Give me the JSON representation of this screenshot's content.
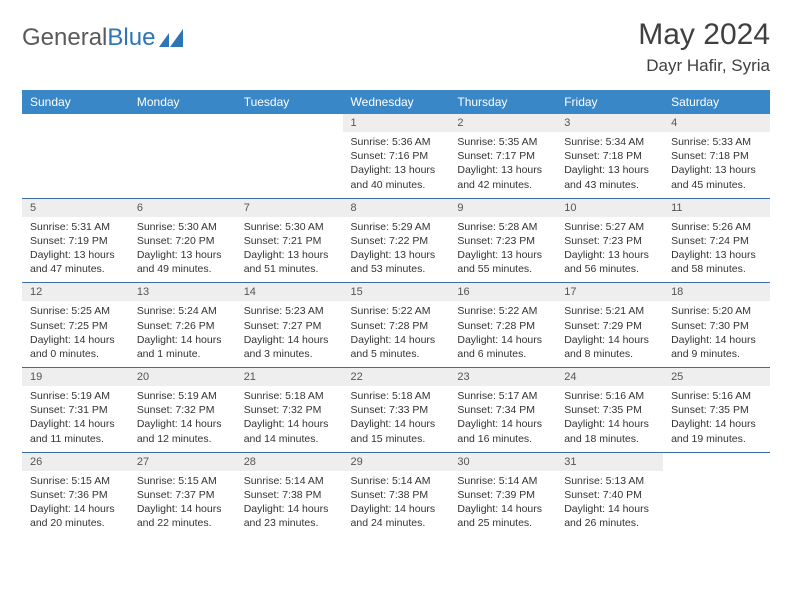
{
  "logo_text_1": "General",
  "logo_text_2": "Blue",
  "month_title": "May 2024",
  "location": "Dayr Hafir, Syria",
  "day_headers": [
    "Sunday",
    "Monday",
    "Tuesday",
    "Wednesday",
    "Thursday",
    "Friday",
    "Saturday"
  ],
  "colors": {
    "header_bg": "#3a87c8",
    "header_fg": "#ffffff",
    "daynum_bg": "#eeeeee",
    "row_border": "#3a6ea5",
    "logo_blue": "#2e75b6",
    "text": "#333333"
  },
  "weeks": [
    [
      null,
      null,
      null,
      {
        "n": "1",
        "sunrise": "Sunrise: 5:36 AM",
        "sunset": "Sunset: 7:16 PM",
        "day1": "Daylight: 13 hours",
        "day2": "and 40 minutes."
      },
      {
        "n": "2",
        "sunrise": "Sunrise: 5:35 AM",
        "sunset": "Sunset: 7:17 PM",
        "day1": "Daylight: 13 hours",
        "day2": "and 42 minutes."
      },
      {
        "n": "3",
        "sunrise": "Sunrise: 5:34 AM",
        "sunset": "Sunset: 7:18 PM",
        "day1": "Daylight: 13 hours",
        "day2": "and 43 minutes."
      },
      {
        "n": "4",
        "sunrise": "Sunrise: 5:33 AM",
        "sunset": "Sunset: 7:18 PM",
        "day1": "Daylight: 13 hours",
        "day2": "and 45 minutes."
      }
    ],
    [
      {
        "n": "5",
        "sunrise": "Sunrise: 5:31 AM",
        "sunset": "Sunset: 7:19 PM",
        "day1": "Daylight: 13 hours",
        "day2": "and 47 minutes."
      },
      {
        "n": "6",
        "sunrise": "Sunrise: 5:30 AM",
        "sunset": "Sunset: 7:20 PM",
        "day1": "Daylight: 13 hours",
        "day2": "and 49 minutes."
      },
      {
        "n": "7",
        "sunrise": "Sunrise: 5:30 AM",
        "sunset": "Sunset: 7:21 PM",
        "day1": "Daylight: 13 hours",
        "day2": "and 51 minutes."
      },
      {
        "n": "8",
        "sunrise": "Sunrise: 5:29 AM",
        "sunset": "Sunset: 7:22 PM",
        "day1": "Daylight: 13 hours",
        "day2": "and 53 minutes."
      },
      {
        "n": "9",
        "sunrise": "Sunrise: 5:28 AM",
        "sunset": "Sunset: 7:23 PM",
        "day1": "Daylight: 13 hours",
        "day2": "and 55 minutes."
      },
      {
        "n": "10",
        "sunrise": "Sunrise: 5:27 AM",
        "sunset": "Sunset: 7:23 PM",
        "day1": "Daylight: 13 hours",
        "day2": "and 56 minutes."
      },
      {
        "n": "11",
        "sunrise": "Sunrise: 5:26 AM",
        "sunset": "Sunset: 7:24 PM",
        "day1": "Daylight: 13 hours",
        "day2": "and 58 minutes."
      }
    ],
    [
      {
        "n": "12",
        "sunrise": "Sunrise: 5:25 AM",
        "sunset": "Sunset: 7:25 PM",
        "day1": "Daylight: 14 hours",
        "day2": "and 0 minutes."
      },
      {
        "n": "13",
        "sunrise": "Sunrise: 5:24 AM",
        "sunset": "Sunset: 7:26 PM",
        "day1": "Daylight: 14 hours",
        "day2": "and 1 minute."
      },
      {
        "n": "14",
        "sunrise": "Sunrise: 5:23 AM",
        "sunset": "Sunset: 7:27 PM",
        "day1": "Daylight: 14 hours",
        "day2": "and 3 minutes."
      },
      {
        "n": "15",
        "sunrise": "Sunrise: 5:22 AM",
        "sunset": "Sunset: 7:28 PM",
        "day1": "Daylight: 14 hours",
        "day2": "and 5 minutes."
      },
      {
        "n": "16",
        "sunrise": "Sunrise: 5:22 AM",
        "sunset": "Sunset: 7:28 PM",
        "day1": "Daylight: 14 hours",
        "day2": "and 6 minutes."
      },
      {
        "n": "17",
        "sunrise": "Sunrise: 5:21 AM",
        "sunset": "Sunset: 7:29 PM",
        "day1": "Daylight: 14 hours",
        "day2": "and 8 minutes."
      },
      {
        "n": "18",
        "sunrise": "Sunrise: 5:20 AM",
        "sunset": "Sunset: 7:30 PM",
        "day1": "Daylight: 14 hours",
        "day2": "and 9 minutes."
      }
    ],
    [
      {
        "n": "19",
        "sunrise": "Sunrise: 5:19 AM",
        "sunset": "Sunset: 7:31 PM",
        "day1": "Daylight: 14 hours",
        "day2": "and 11 minutes."
      },
      {
        "n": "20",
        "sunrise": "Sunrise: 5:19 AM",
        "sunset": "Sunset: 7:32 PM",
        "day1": "Daylight: 14 hours",
        "day2": "and 12 minutes."
      },
      {
        "n": "21",
        "sunrise": "Sunrise: 5:18 AM",
        "sunset": "Sunset: 7:32 PM",
        "day1": "Daylight: 14 hours",
        "day2": "and 14 minutes."
      },
      {
        "n": "22",
        "sunrise": "Sunrise: 5:18 AM",
        "sunset": "Sunset: 7:33 PM",
        "day1": "Daylight: 14 hours",
        "day2": "and 15 minutes."
      },
      {
        "n": "23",
        "sunrise": "Sunrise: 5:17 AM",
        "sunset": "Sunset: 7:34 PM",
        "day1": "Daylight: 14 hours",
        "day2": "and 16 minutes."
      },
      {
        "n": "24",
        "sunrise": "Sunrise: 5:16 AM",
        "sunset": "Sunset: 7:35 PM",
        "day1": "Daylight: 14 hours",
        "day2": "and 18 minutes."
      },
      {
        "n": "25",
        "sunrise": "Sunrise: 5:16 AM",
        "sunset": "Sunset: 7:35 PM",
        "day1": "Daylight: 14 hours",
        "day2": "and 19 minutes."
      }
    ],
    [
      {
        "n": "26",
        "sunrise": "Sunrise: 5:15 AM",
        "sunset": "Sunset: 7:36 PM",
        "day1": "Daylight: 14 hours",
        "day2": "and 20 minutes."
      },
      {
        "n": "27",
        "sunrise": "Sunrise: 5:15 AM",
        "sunset": "Sunset: 7:37 PM",
        "day1": "Daylight: 14 hours",
        "day2": "and 22 minutes."
      },
      {
        "n": "28",
        "sunrise": "Sunrise: 5:14 AM",
        "sunset": "Sunset: 7:38 PM",
        "day1": "Daylight: 14 hours",
        "day2": "and 23 minutes."
      },
      {
        "n": "29",
        "sunrise": "Sunrise: 5:14 AM",
        "sunset": "Sunset: 7:38 PM",
        "day1": "Daylight: 14 hours",
        "day2": "and 24 minutes."
      },
      {
        "n": "30",
        "sunrise": "Sunrise: 5:14 AM",
        "sunset": "Sunset: 7:39 PM",
        "day1": "Daylight: 14 hours",
        "day2": "and 25 minutes."
      },
      {
        "n": "31",
        "sunrise": "Sunrise: 5:13 AM",
        "sunset": "Sunset: 7:40 PM",
        "day1": "Daylight: 14 hours",
        "day2": "and 26 minutes."
      },
      null
    ]
  ]
}
